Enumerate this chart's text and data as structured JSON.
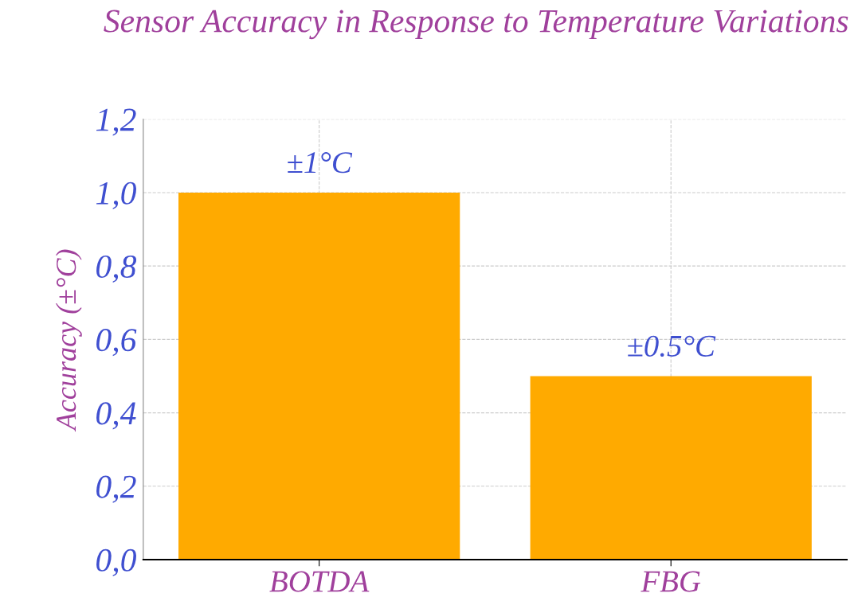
{
  "chart_data": {
    "type": "bar",
    "title": "Sensor Accuracy in Response to Temperature Variations",
    "ylabel": "Accuracy (±°C)",
    "categories": [
      "BOTDA",
      "FBG"
    ],
    "values": [
      1.0,
      0.5
    ],
    "color": "#ffaa00",
    "value_labels": [
      "±1°C",
      "±0.5°C"
    ],
    "ylim": [
      0,
      1.2
    ],
    "yticks": [
      {
        "value": 0,
        "label": "0,0"
      },
      {
        "value": 0.2,
        "label": "0,2"
      },
      {
        "value": 0.4,
        "label": "0,4"
      },
      {
        "value": 0.6,
        "label": "0,6"
      },
      {
        "value": 0.8,
        "label": "0,8"
      },
      {
        "value": 1.0,
        "label": "1,0"
      },
      {
        "value": 1.2,
        "label": "1,2"
      }
    ],
    "grid": true
  }
}
